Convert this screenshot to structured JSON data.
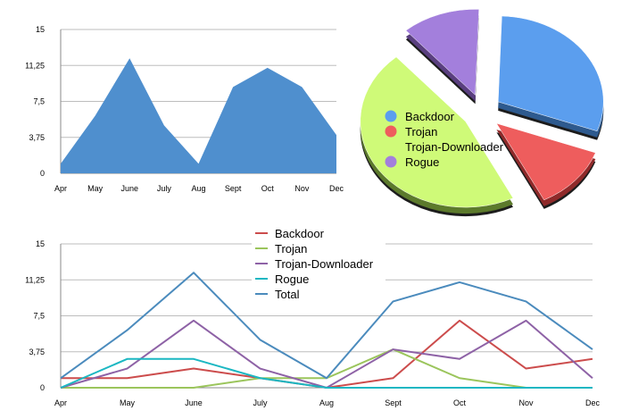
{
  "chart_data": [
    {
      "type": "area",
      "categories": [
        "Apr",
        "May",
        "June",
        "July",
        "Aug",
        "Sept",
        "Oct",
        "Nov",
        "Dec"
      ],
      "values": [
        1,
        6,
        12,
        5,
        1,
        9,
        11,
        9,
        4
      ],
      "ylim": [
        0,
        15
      ],
      "yticks": [
        "0",
        "3,75",
        "7,5",
        "11,25",
        "15"
      ],
      "ytick_values": [
        0,
        3.75,
        7.5,
        11.25,
        15
      ],
      "grid": true,
      "color": "#4f8fce"
    },
    {
      "type": "pie",
      "style": "3d-exploded",
      "labels": [
        "Backdoor",
        "Trojan",
        "Trojan-Downloader",
        "Rogue"
      ],
      "values": [
        30,
        12,
        46,
        12
      ],
      "colors": [
        "#5b9eee",
        "#ee5d5d",
        "#cffa78",
        "#a37fdc"
      ],
      "legend_position": "overlay-left"
    },
    {
      "type": "line",
      "categories": [
        "Apr",
        "May",
        "June",
        "July",
        "Aug",
        "Sept",
        "Oct",
        "Nov",
        "Dec"
      ],
      "ylim": [
        0,
        15
      ],
      "yticks": [
        "0",
        "3,75",
        "7,5",
        "11,25",
        "15"
      ],
      "ytick_values": [
        0,
        3.75,
        7.5,
        11.25,
        15
      ],
      "grid": true,
      "legend_position": "top-center",
      "series": [
        {
          "name": "Backdoor",
          "color": "#cc4c4c",
          "values": [
            1,
            1,
            2,
            1,
            0,
            1,
            7,
            2,
            3
          ]
        },
        {
          "name": "Trojan",
          "color": "#9bc55c",
          "values": [
            0,
            0,
            0,
            1,
            1,
            4,
            1,
            0,
            0
          ]
        },
        {
          "name": "Trojan-Downloader",
          "color": "#8e62a6",
          "values": [
            0,
            2,
            7,
            2,
            0,
            4,
            3,
            7,
            1
          ]
        },
        {
          "name": "Rogue",
          "color": "#1bb7c2",
          "values": [
            0,
            3,
            3,
            1,
            0,
            0,
            0,
            0,
            0
          ]
        },
        {
          "name": "Total",
          "color": "#4b8bbd",
          "values": [
            1,
            6,
            12,
            5,
            1,
            9,
            11,
            9,
            4
          ]
        }
      ]
    }
  ]
}
